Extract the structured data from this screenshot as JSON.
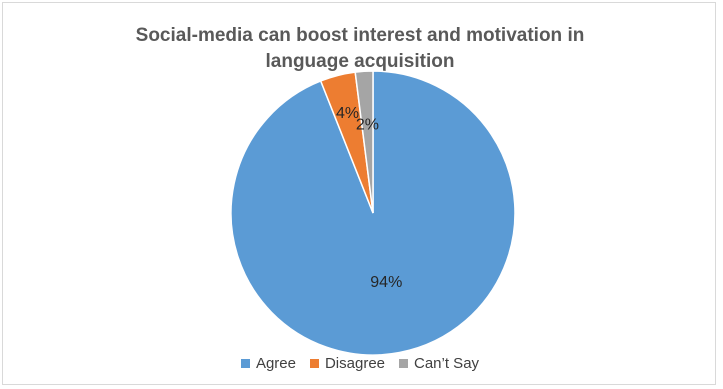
{
  "chart_data": {
    "type": "pie",
    "title_lines": [
      "Social-media can boost interest and motivation in",
      "language acquisition"
    ],
    "categories": [
      "Agree",
      "Disagree",
      "Can’t Say"
    ],
    "values": [
      94,
      4,
      2
    ],
    "data_labels": [
      "94%",
      "4%",
      "2%"
    ],
    "colors": [
      "#5b9bd5",
      "#ed7d31",
      "#a5a5a5"
    ],
    "legend_position": "bottom"
  }
}
